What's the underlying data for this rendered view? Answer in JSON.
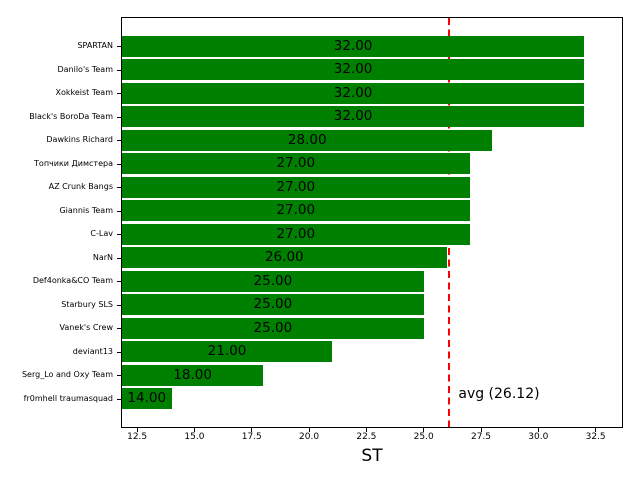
{
  "figure": {
    "background": "#ffffff"
  },
  "chart_data": {
    "type": "bar",
    "orientation": "horizontal",
    "title": "",
    "xlabel": "ST",
    "ylabel": "",
    "categories": [
      "SPARTAN",
      "Danilo's Team",
      "Xokkeist Team",
      "Black's BoroDa Team",
      "Dawkins Richard",
      "Топчики Димстера",
      "AZ Crunk Bangs",
      "Giannis Team",
      "C-Lav",
      "NarN",
      "Def4onka&CO Team",
      "Starbury SLS",
      "Vanek's Crew",
      "deviant13",
      "Serg_Lo and Oxy Team",
      "fr0mhell traumasquad"
    ],
    "values": [
      32,
      32,
      32,
      32,
      28,
      27,
      27,
      27,
      27,
      26,
      25,
      25,
      25,
      21,
      18,
      14
    ],
    "bar_value_labels": [
      "32.00",
      "32.00",
      "32.00",
      "32.00",
      "28.00",
      "27.00",
      "27.00",
      "27.00",
      "27.00",
      "26.00",
      "25.00",
      "25.00",
      "25.00",
      "21.00",
      "18.00",
      "14.00"
    ],
    "bar_color": "#008000",
    "bar_label_color": "#000000",
    "xlim": [
      11.84,
      33.65
    ],
    "xticks": [
      12.5,
      15.0,
      17.5,
      20.0,
      22.5,
      25.0,
      27.5,
      30.0,
      32.5
    ],
    "xtick_labels": [
      "12.5",
      "15.0",
      "17.5",
      "20.0",
      "22.5",
      "25.0",
      "27.5",
      "30.0",
      "32.5"
    ],
    "grid": false,
    "avg_line": {
      "value": 26.12,
      "label": "avg (26.12)",
      "color": "#ff0000",
      "style": "dashed"
    }
  }
}
